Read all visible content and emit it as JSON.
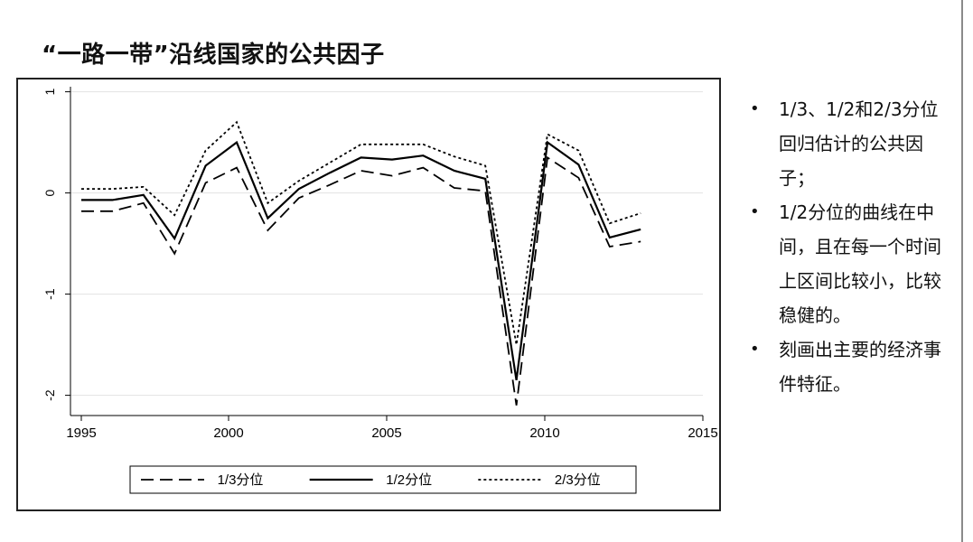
{
  "slide": {
    "title": "“一路一带”沿线国家的公共因子"
  },
  "bullets": [
    "1/3、1/2和2/3分位回归估计的公共因子；",
    "1/2分位的曲线在中间，且在每一个时间上区间比较小，比较稳健的。",
    "刻画出主要的经济事件特征。"
  ],
  "chart_data": {
    "type": "line",
    "x": [
      1995,
      1996,
      1997,
      1998,
      1999,
      2000,
      2001,
      2002,
      2003,
      2004,
      2005,
      2006,
      2007,
      2008,
      2009,
      2010,
      2011,
      2012,
      2013
    ],
    "series": [
      {
        "name": "1/3分位",
        "values": [
          -0.18,
          -0.18,
          -0.1,
          -0.6,
          0.1,
          0.25,
          -0.37,
          -0.05,
          0.08,
          0.22,
          0.17,
          0.25,
          0.05,
          0.02,
          -2.1,
          0.35,
          0.15,
          -0.53,
          -0.48
        ],
        "style": "dashed"
      },
      {
        "name": "1/2分位",
        "values": [
          -0.07,
          -0.07,
          -0.02,
          -0.45,
          0.27,
          0.5,
          -0.25,
          0.04,
          0.2,
          0.35,
          0.33,
          0.37,
          0.22,
          0.14,
          -1.85,
          0.5,
          0.28,
          -0.44,
          -0.36
        ],
        "style": "solid"
      },
      {
        "name": "2/3分位",
        "values": [
          0.04,
          0.04,
          0.06,
          -0.22,
          0.42,
          0.7,
          -0.1,
          0.12,
          0.3,
          0.48,
          0.48,
          0.48,
          0.36,
          0.27,
          -1.5,
          0.58,
          0.42,
          -0.3,
          -0.2
        ],
        "style": "dotted"
      }
    ],
    "xlim": [
      1995,
      2015
    ],
    "ylim": [
      -2.2,
      1.05
    ],
    "xticks": [
      1995,
      2000,
      2005,
      2010,
      2015
    ],
    "xtick_labels": [
      "1995",
      "2000",
      "2005",
      "2010",
      "2015"
    ],
    "yticks": [
      1,
      0,
      -1,
      -2
    ],
    "ytick_labels": [
      "1",
      "0",
      "-1",
      "-2"
    ],
    "grid": true,
    "legend_position": "bottom",
    "colors": {
      "line": "#000000",
      "grid": "#e3e3e3",
      "frame": "#222222"
    }
  }
}
